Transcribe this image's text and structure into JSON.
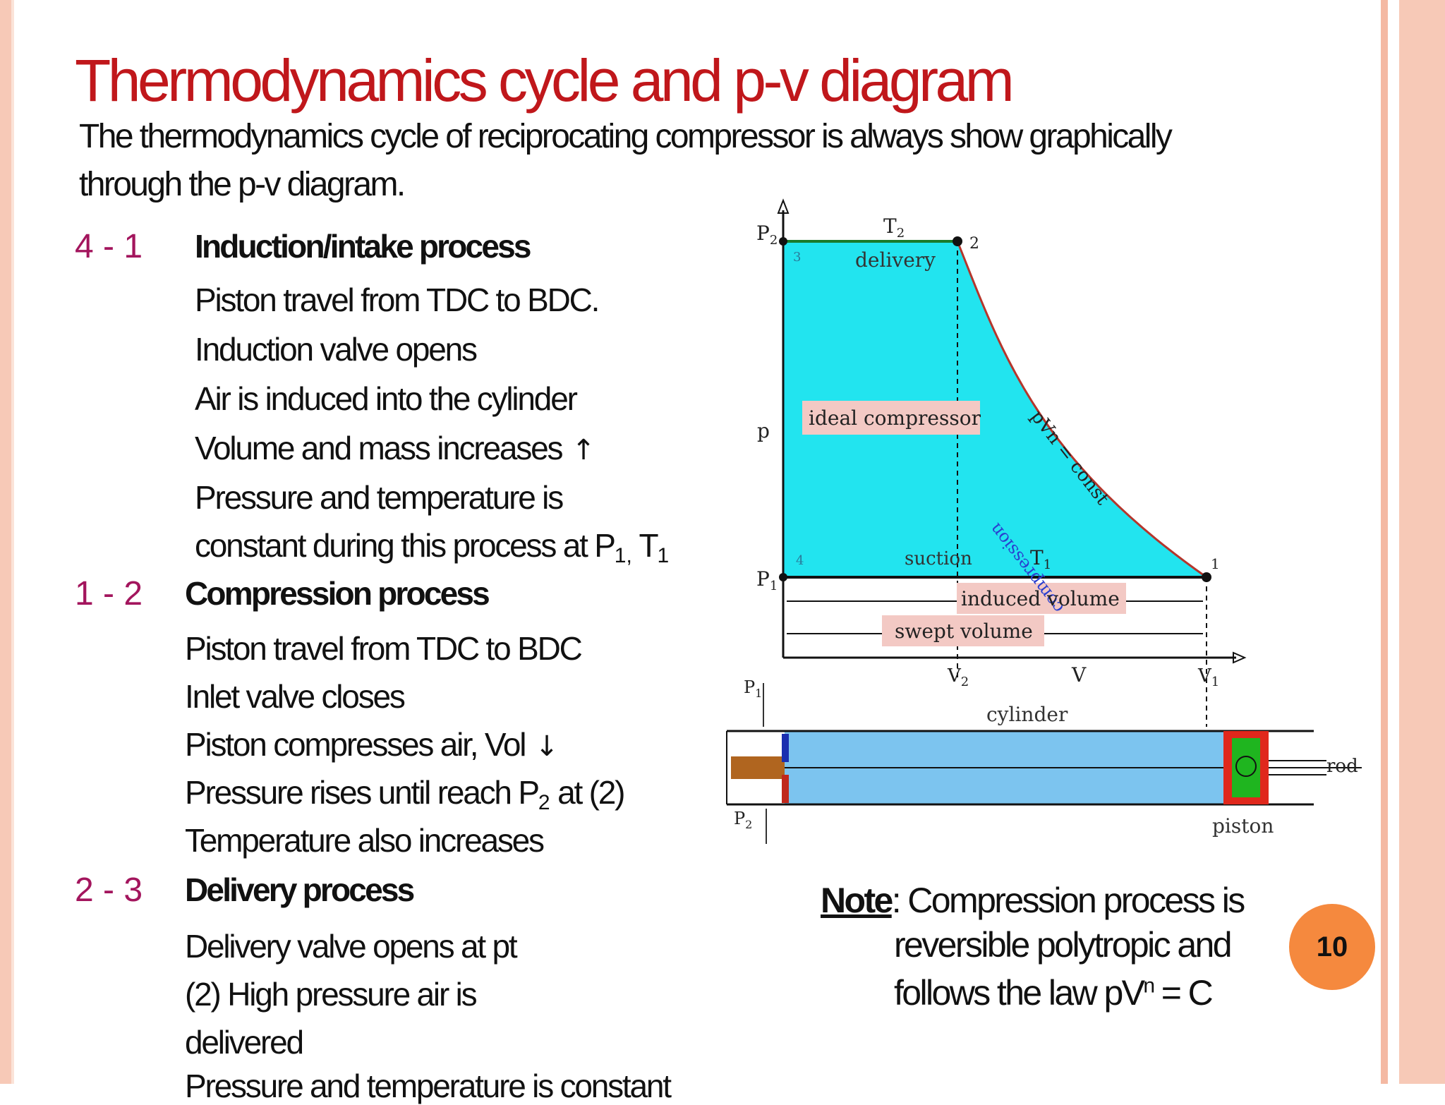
{
  "slide": {
    "title": "Thermodynamics cycle and p-v diagram",
    "subtitle": "The thermodynamics cycle of reciprocating compressor is always show graphically through the p-v diagram.",
    "page_number": "10",
    "colors": {
      "title": "#c0171b",
      "step_number": "#a3155d",
      "badge": "#f5893e",
      "frame": "#f7c9b7"
    }
  },
  "processes": [
    {
      "number": "4 - 1",
      "heading": "Induction/intake process",
      "lines": [
        "Piston travel from TDC to BDC.",
        "Induction valve opens",
        "Air is induced into the cylinder",
        "Volume and mass increases",
        "Pressure and temperature is",
        "constant  during this process at P"
      ],
      "arrow_up": "↑",
      "sub_p1": "1,",
      "t_letter": " T",
      "sub_t1": "1"
    },
    {
      "number": "1 - 2",
      "heading": "Compression process",
      "lines": [
        "Piston travel from TDC to BDC",
        "Inlet valve closes",
        "Piston compresses air, Vol",
        "Pressure rises until reach P",
        "Temperature also increases"
      ],
      "arrow_down": "↓",
      "sub_p2": "2",
      "p2_tail": " at (2)"
    },
    {
      "number": "2 - 3",
      "heading": "Delivery process",
      "lines": [
        "Delivery valve opens at pt",
        "(2)  High pressure air is",
        "delivered",
        "Pressure and temperature is constant"
      ]
    }
  ],
  "diagram": {
    "p2": "P",
    "p2_sub": "2",
    "p1": "P",
    "p1_sub": "1",
    "p_axis": "p",
    "v_axis": "V",
    "v1": "V",
    "v1_sub": "1",
    "v2": "V",
    "v2_sub": "2",
    "t2": "T",
    "t2_sub": "2",
    "t1": "T",
    "t1_sub": "1",
    "pt1": "1",
    "pt2": "2",
    "pt3": "3",
    "pt4": "4",
    "delivery": "delivery",
    "ideal_compressor": "ideal compressor",
    "pvn_const": "pVn = const",
    "compression": "compression",
    "suction": "suction",
    "induced_volume": "induced volume",
    "swept_volume": "swept volume",
    "cylinder": "cylinder",
    "rod": "rod",
    "piston": "piston",
    "colors": {
      "pv_area": "#22e4ef",
      "cylinder": "#7cc4ef",
      "label_bg": "#f3c9c4",
      "piston_green": "#1fb51f",
      "piston_red": "#e0281c",
      "valve_brown": "#b0651f"
    }
  },
  "note": {
    "label": "Note",
    "line1": ": Compression process is",
    "line2": "reversible polytropic and",
    "line3": "follows the law pV",
    "sup": "n",
    "line3_tail": " = C"
  }
}
